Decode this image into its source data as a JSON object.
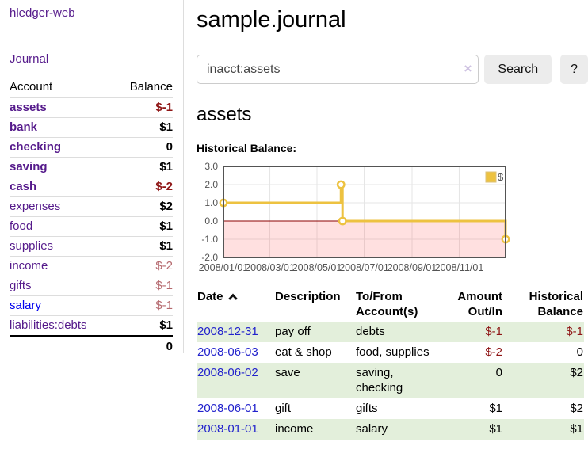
{
  "app": {
    "brand": "hledger-web"
  },
  "sidebar": {
    "journal_link": "Journal",
    "accounts": {
      "col_account": "Account",
      "col_balance": "Balance",
      "rows": [
        {
          "name": "assets",
          "balance": "$-1",
          "level": 1,
          "bold": true,
          "blue_link": false
        },
        {
          "name": "bank",
          "balance": "$1",
          "level": 2,
          "bold": true,
          "blue_link": false
        },
        {
          "name": "checking",
          "balance": "0",
          "level": 3,
          "bold": true,
          "blue_link": false
        },
        {
          "name": "saving",
          "balance": "$1",
          "level": 3,
          "bold": true,
          "blue_link": false
        },
        {
          "name": "cash",
          "balance": "$-2",
          "level": 2,
          "bold": true,
          "blue_link": false
        },
        {
          "name": "expenses",
          "balance": "$2",
          "level": 1,
          "bold": false,
          "blue_link": false
        },
        {
          "name": "food",
          "balance": "$1",
          "level": 2,
          "bold": false,
          "blue_link": false
        },
        {
          "name": "supplies",
          "balance": "$1",
          "level": 2,
          "bold": false,
          "blue_link": false
        },
        {
          "name": "income",
          "balance": "$-2",
          "level": 1,
          "bold": false,
          "blue_link": false
        },
        {
          "name": "gifts",
          "balance": "$-1",
          "level": 2,
          "bold": false,
          "blue_link": false
        },
        {
          "name": "salary",
          "balance": "$-1",
          "level": 2,
          "bold": false,
          "blue_link": true
        },
        {
          "name": "liabilities:debts",
          "balance": "$1",
          "level": 1,
          "bold": false,
          "blue_link": false
        }
      ],
      "total": "0"
    }
  },
  "main": {
    "title": "sample.journal",
    "search": {
      "value": "inacct:assets",
      "clear_icon": "×",
      "search_button": "Search",
      "help_button": "?"
    },
    "account_heading": "assets",
    "chart_heading": "Historical Balance:"
  },
  "chart_data": {
    "type": "line",
    "title": "Historical Balance",
    "step": true,
    "series": [
      {
        "name": "$",
        "color": "#EDC240",
        "points": [
          {
            "date": "2008-01-01",
            "day": 0,
            "value": 1
          },
          {
            "date": "2008-06-01",
            "day": 152,
            "value": 2
          },
          {
            "date": "2008-06-03",
            "day": 154,
            "value": 0
          },
          {
            "date": "2008-12-31",
            "day": 365,
            "value": -1
          }
        ]
      }
    ],
    "ylim": [
      -2,
      3
    ],
    "yticks": [
      {
        "label": "3.0",
        "value": 3
      },
      {
        "label": "2.0",
        "value": 2
      },
      {
        "label": "1.0",
        "value": 1
      },
      {
        "label": "0.0",
        "value": 0
      },
      {
        "label": "-1.0",
        "value": -1
      },
      {
        "label": "-2.0",
        "value": -2
      }
    ],
    "xticks": [
      {
        "label": "2008/01/01",
        "day": 0
      },
      {
        "label": "2008/03/01",
        "day": 60
      },
      {
        "label": "2008/05/01",
        "day": 121
      },
      {
        "label": "2008/07/01",
        "day": 182
      },
      {
        "label": "2008/09/01",
        "day": 244
      },
      {
        "label": "2008/11/01",
        "day": 305
      }
    ],
    "x_day_range": [
      0,
      365
    ],
    "legend": {
      "label": "$",
      "position": "top-right"
    },
    "colors": {
      "grid": "#e6e6e6",
      "border": "#545454",
      "zero_line": "#8b0000",
      "negative_fill": "rgba(255,0,0,0.12)",
      "axis_text": "#545454",
      "marker_fill": "#ffffff"
    }
  },
  "register": {
    "headers": {
      "date": "Date",
      "description": "Description",
      "accounts": "To/From Account(s)",
      "amount": "Amount Out/In",
      "balance": "Historical Balance"
    },
    "rows": [
      {
        "date": "2008-12-31",
        "description": "pay off",
        "accounts": "debts",
        "amount": "$-1",
        "balance": "$-1"
      },
      {
        "date": "2008-06-03",
        "description": "eat & shop",
        "accounts": "food, supplies",
        "amount": "$-2",
        "balance": "0"
      },
      {
        "date": "2008-06-02",
        "description": "save",
        "accounts": "saving, checking",
        "amount": "0",
        "balance": "$2"
      },
      {
        "date": "2008-06-01",
        "description": "gift",
        "accounts": "gifts",
        "amount": "$1",
        "balance": "$2"
      },
      {
        "date": "2008-01-01",
        "description": "income",
        "accounts": "salary",
        "amount": "$1",
        "balance": "$1"
      }
    ]
  }
}
